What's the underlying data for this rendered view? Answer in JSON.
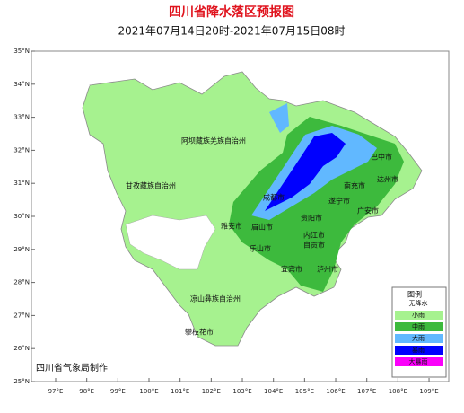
{
  "header": {
    "title": "四川省降水落区预报图",
    "subtitle": "2021年07月14日20时-2021年07月15日08时"
  },
  "axes": {
    "lat": [
      "35°N",
      "34°N",
      "33°N",
      "32°N",
      "31°N",
      "30°N",
      "29°N",
      "28°N",
      "27°N",
      "26°N",
      "25°N"
    ],
    "lon": [
      "97°E",
      "98°E",
      "99°E",
      "100°E",
      "101°E",
      "102°E",
      "103°E",
      "104°E",
      "105°E",
      "106°E",
      "107°E",
      "108°E",
      "109°E"
    ]
  },
  "regions": [
    "阿坝藏族羌族自治州",
    "甘孜藏族自治州",
    "巴中市",
    "达州市",
    "南充市",
    "遂宁市",
    "广安市",
    "成都市",
    "雅安市",
    "眉山市",
    "资阳市",
    "内江市",
    "乐山市",
    "自贡市",
    "宜宾市",
    "泸州市",
    "凉山彝族自治州",
    "攀枝花市"
  ],
  "legend": {
    "title": "图例",
    "items": [
      {
        "name": "无降水",
        "color": "#ffffff"
      },
      {
        "name": "小雨",
        "color": "#a6f28f"
      },
      {
        "name": "中雨",
        "color": "#3dba3d"
      },
      {
        "name": "大雨",
        "color": "#61b8ff"
      },
      {
        "name": "暴雨",
        "color": "#0000fe"
      },
      {
        "name": "大暴雨",
        "color": "#fa00fa"
      }
    ]
  },
  "footer": "四川省气象局制作"
}
